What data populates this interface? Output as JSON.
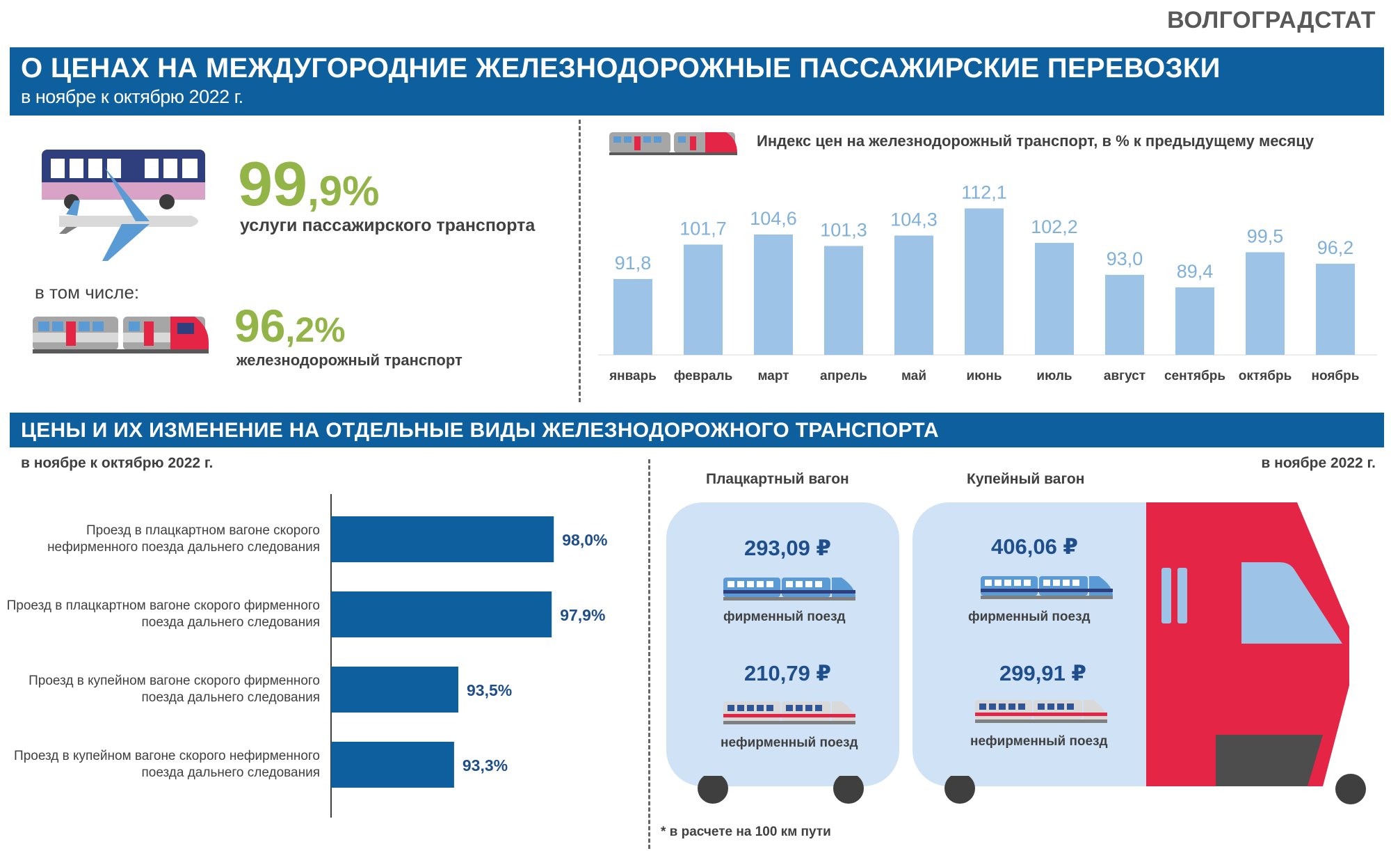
{
  "agency": "ВОЛГОГРАДСТАТ",
  "header": {
    "title": "О ЦЕНАХ НА МЕЖДУГОРОДНИЕ ЖЕЛЕЗНОДОРОЖНЫЕ ПАССАЖИРСКИЕ ПЕРЕВОЗКИ",
    "subtitle": "в ноябре к октябрю 2022 г."
  },
  "kpi": {
    "services_int": "99",
    "services_frac": ",9%",
    "services_label": "услуги пассажирского транспорта",
    "including": "в том числе:",
    "rail_int": "96",
    "rail_frac": ",2%",
    "rail_label": "железнодорожный транспорт"
  },
  "section2": {
    "title": "ЦЕНЫ И ИХ ИЗМЕНЕНИЕ НА ОТДЕЛЬНЫЕ ВИДЫ ЖЕЛЕЗНОДОРОЖНОГО ТРАНСПОРТА",
    "left_sub": "в ноябре к октябрю 2022 г.",
    "right_sub": "в ноябре 2022 г.",
    "platzkart_head": "Плацкартный вагон",
    "coupe_head": "Купейный вагон",
    "platzkart": [
      {
        "price": "293,09 ₽",
        "type": "фирменный поезд"
      },
      {
        "price": "210,79 ₽",
        "type": "нефирменный поезд"
      }
    ],
    "coupe": [
      {
        "price": "406,06 ₽",
        "type": "фирменный поезд"
      },
      {
        "price": "299,91 ₽",
        "type": "нефирменный поезд"
      }
    ],
    "footnote": "* в расчете на 100 км пути"
  },
  "colors": {
    "banner": "#0e5f9e",
    "kpi_green": "#93b548",
    "bar_light": "#9dc3e6",
    "bar_dark": "#0e5f9e",
    "card": "#cfe2f6",
    "train_red": "#e42546"
  },
  "chart_data": [
    {
      "type": "bar",
      "title": "Индекс цен на железнодорожный транспорт, в % к предыдущему месяцу",
      "categories": [
        "январь",
        "февраль",
        "март",
        "апрель",
        "май",
        "июнь",
        "июль",
        "август",
        "сентябрь",
        "октябрь",
        "ноябрь"
      ],
      "values": [
        91.8,
        101.7,
        104.6,
        101.3,
        104.3,
        112.1,
        102.2,
        93.0,
        89.4,
        99.5,
        96.2
      ],
      "value_labels": [
        "91,8",
        "101,7",
        "104,6",
        "101,3",
        "104,3",
        "112,1",
        "102,2",
        "93,0",
        "89,4",
        "99,5",
        "96,2"
      ]
    },
    {
      "type": "bar",
      "orientation": "horizontal",
      "categories": [
        "Проезд в плацкартном вагоне скорого нефирменного поезда дальнего следования",
        "Проезд в плацкартном вагоне скорого фирменного поезда дальнего следования",
        "Проезд в купейном вагоне скорого фирменного поезда дальнего следования",
        "Проезд в купейном вагоне скорого нефирменного поезда дальнего следования"
      ],
      "values": [
        98.0,
        97.9,
        93.5,
        93.3
      ],
      "value_labels": [
        "98,0%",
        "97,9%",
        "93,5%",
        "93,3%"
      ]
    }
  ]
}
